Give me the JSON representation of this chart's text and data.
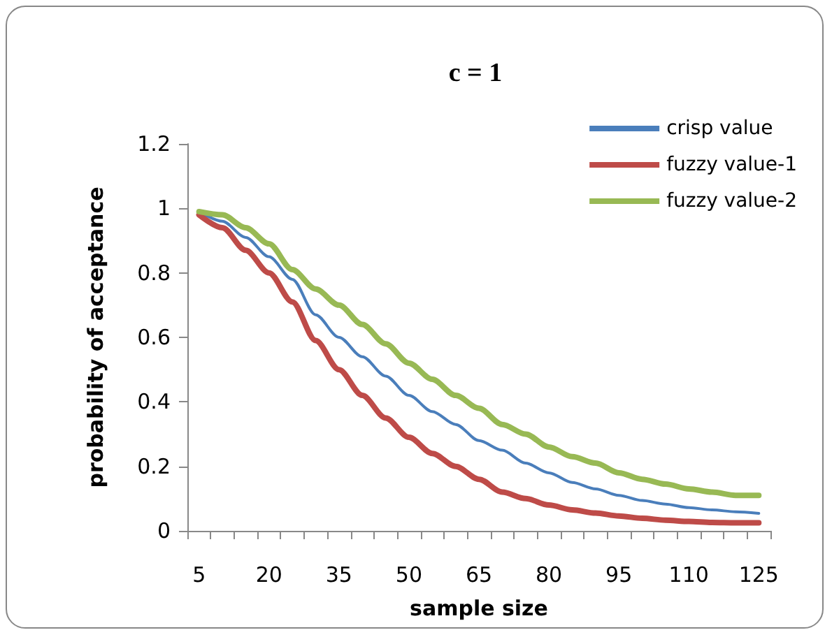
{
  "chart_data": {
    "type": "line",
    "title": "c = 1",
    "xlabel": "sample size",
    "ylabel": "probability of acceptance",
    "categories": [
      "5",
      null,
      null,
      "20",
      null,
      null,
      "35",
      null,
      null,
      "50",
      null,
      null,
      "65",
      null,
      null,
      "80",
      null,
      null,
      "95",
      null,
      null,
      "110",
      null,
      null,
      "125"
    ],
    "series": [
      {
        "name": "crisp value",
        "color": "#4a7ebb",
        "values": [
          0.99,
          0.96,
          0.91,
          0.85,
          0.78,
          0.67,
          0.6,
          0.54,
          0.48,
          0.42,
          0.37,
          0.33,
          0.28,
          0.25,
          0.21,
          0.18,
          0.15,
          0.13,
          0.11,
          0.094,
          0.083,
          0.072,
          0.065,
          0.059,
          0.054
        ]
      },
      {
        "name": "fuzzy value-1",
        "color": "#be4b48",
        "values": [
          0.98,
          0.94,
          0.87,
          0.8,
          0.71,
          0.59,
          0.5,
          0.42,
          0.35,
          0.29,
          0.24,
          0.2,
          0.16,
          0.12,
          0.1,
          0.08,
          0.065,
          0.055,
          0.046,
          0.039,
          0.033,
          0.029,
          0.026,
          0.025,
          0.025
        ]
      },
      {
        "name": "fuzzy value-2",
        "color": "#98b954",
        "values": [
          0.99,
          0.98,
          0.94,
          0.89,
          0.81,
          0.75,
          0.7,
          0.64,
          0.58,
          0.52,
          0.47,
          0.42,
          0.38,
          0.33,
          0.3,
          0.26,
          0.23,
          0.21,
          0.18,
          0.16,
          0.145,
          0.13,
          0.12,
          0.11,
          0.11
        ]
      }
    ],
    "ylim": [
      0,
      1.2
    ],
    "yticks": [
      0,
      0.2,
      0.4,
      0.6,
      0.8,
      1,
      1.2
    ],
    "grid": false,
    "legend": "top right",
    "marker": "none",
    "line_style": "solid"
  }
}
